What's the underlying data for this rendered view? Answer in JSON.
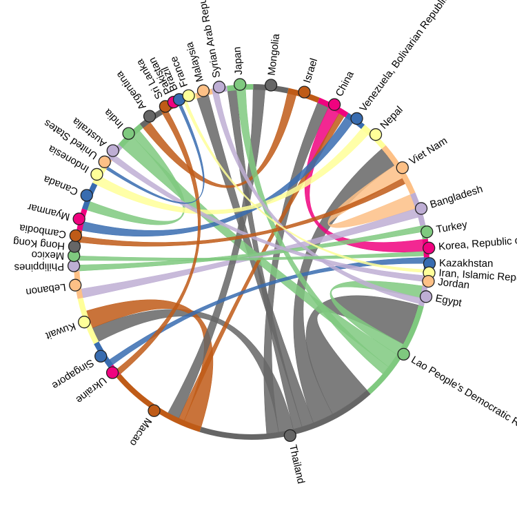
{
  "chart_data": {
    "type": "chord",
    "nodes": [
      {
        "name": "Mongolia",
        "color": "#666666",
        "value": 11.5
      },
      {
        "name": "Israel",
        "color": "#bf5b17",
        "value": 10.5
      },
      {
        "name": "China",
        "color": "#f0027f",
        "value": 10.5
      },
      {
        "name": "Venezuela, Bolivarian Republic of",
        "color": "#386cb0",
        "value": 6.5
      },
      {
        "name": "Nepal",
        "color": "#ffff99",
        "value": 9.5
      },
      {
        "name": "Viet Nam",
        "color": "#fdc086",
        "value": 18
      },
      {
        "name": "Bangladesh",
        "color": "#beaed4",
        "value": 11
      },
      {
        "name": "Turkey",
        "color": "#7fc97f",
        "value": 4.5
      },
      {
        "name": "Korea, Republic of",
        "color": "#f0027f",
        "value": 6
      },
      {
        "name": "Kazakhstan",
        "color": "#386cb0",
        "value": 4
      },
      {
        "name": "Iran, Islamic Republic of",
        "color": "#ffff99",
        "value": 2
      },
      {
        "name": "Jordan",
        "color": "#fdc086",
        "value": 3.5
      },
      {
        "name": "Egypt",
        "color": "#beaed4",
        "value": 6.5
      },
      {
        "name": "Lao People's Democratic Republic",
        "color": "#7fc97f",
        "value": 33.5
      },
      {
        "name": "Thailand",
        "color": "#666666",
        "value": 59
      },
      {
        "name": "Macao",
        "color": "#bf5b17",
        "value": 32.5
      },
      {
        "name": "Ukraine",
        "color": "#f0027f",
        "value": 4
      },
      {
        "name": "Singapore",
        "color": "#386cb0",
        "value": 9
      },
      {
        "name": "Kuwait",
        "color": "#ffff99",
        "value": 15.5
      },
      {
        "name": "Lebanon",
        "color": "#fdc086",
        "value": 9
      },
      {
        "name": "Philippines",
        "color": "#beaed4",
        "value": 3.5
      },
      {
        "name": "Mexico",
        "color": "#7fc97f",
        "value": 3
      },
      {
        "name": "Hong Kong",
        "color": "#666666",
        "value": 3
      },
      {
        "name": "Cambodia",
        "color": "#bf5b17",
        "value": 4
      },
      {
        "name": "Myanmar",
        "color": "#f0027f",
        "value": 7
      },
      {
        "name": "Canada",
        "color": "#386cb0",
        "value": 9
      },
      {
        "name": "Indonesia",
        "color": "#ffff99",
        "value": 6
      },
      {
        "name": "United States",
        "color": "#fdc086",
        "value": 3.5
      },
      {
        "name": "Australia",
        "color": "#beaed4",
        "value": 5.5
      },
      {
        "name": "India",
        "color": "#7fc97f",
        "value": 9.5
      },
      {
        "name": "Argentina",
        "color": "#666666",
        "value": 8
      },
      {
        "name": "Sri Lanka",
        "color": "#bf5b17",
        "value": 4
      },
      {
        "name": "Pakistan",
        "color": "#f0027f",
        "value": 2
      },
      {
        "name": "Brazil",
        "color": "#386cb0",
        "value": 2
      },
      {
        "name": "France",
        "color": "#ffff99",
        "value": 4.5
      },
      {
        "name": "Malaysia",
        "color": "#fdc086",
        "value": 5.5
      },
      {
        "name": "Syrian Arab Republic",
        "color": "#beaed4",
        "value": 5
      },
      {
        "name": "Japan",
        "color": "#7fc97f",
        "value": 8.5
      }
    ],
    "flows": [
      {
        "from": "Thailand",
        "to": "Lao People's Democratic Republic",
        "value": 14
      },
      {
        "from": "Thailand",
        "to": "Viet Nam",
        "value": 7
      },
      {
        "from": "Thailand",
        "to": "Malaysia",
        "value": 4
      },
      {
        "from": "Thailand",
        "to": "Japan",
        "value": 3
      },
      {
        "from": "Thailand",
        "to": "Kuwait",
        "value": 5
      },
      {
        "from": "Thailand",
        "to": "China",
        "value": 4
      },
      {
        "from": "China",
        "to": "Korea, Republic of",
        "value": 4
      },
      {
        "from": "Lao People's Democratic Republic",
        "to": "Egypt",
        "value": 4
      },
      {
        "from": "Lao People's Democratic Republic",
        "to": "India",
        "value": 5
      },
      {
        "from": "Macao",
        "to": "Kuwait",
        "value": 6
      },
      {
        "from": "Macao",
        "to": "China",
        "value": 2
      },
      {
        "from": "Viet Nam",
        "to": "Bangladesh",
        "value": 5
      },
      {
        "from": "Bangladesh",
        "to": "Lebanon",
        "value": 3
      },
      {
        "from": "India",
        "to": "Canada",
        "value": 3
      },
      {
        "from": "Mongolia",
        "to": "Macao",
        "value": 4
      },
      {
        "from": "Israel",
        "to": "Argentina",
        "value": 3
      },
      {
        "from": "Venezuela, Bolivarian Republic of",
        "to": "Myanmar",
        "value": 3
      },
      {
        "from": "Nepal",
        "to": "Indonesia",
        "value": 3
      },
      {
        "from": "Turkey",
        "to": "Philippines",
        "value": 2
      },
      {
        "from": "Kazakhstan",
        "to": "Singapore",
        "value": 2
      },
      {
        "from": "Japan",
        "to": "Lao People's Democratic Republic",
        "value": 3
      },
      {
        "from": "Syrian Arab Republic",
        "to": "Egypt",
        "value": 2
      },
      {
        "from": "Australia",
        "to": "Jordan",
        "value": 2
      },
      {
        "from": "Cambodia",
        "to": "Viet Nam",
        "value": 2
      },
      {
        "from": "Mexico",
        "to": "Korea, Republic of",
        "value": 1.5
      },
      {
        "from": "Sri Lanka",
        "to": "Ukraine",
        "value": 2
      },
      {
        "from": "France",
        "to": "Iran, Islamic Republic of",
        "value": 1
      },
      {
        "from": "Brazil",
        "to": "United States",
        "value": 1
      }
    ]
  }
}
